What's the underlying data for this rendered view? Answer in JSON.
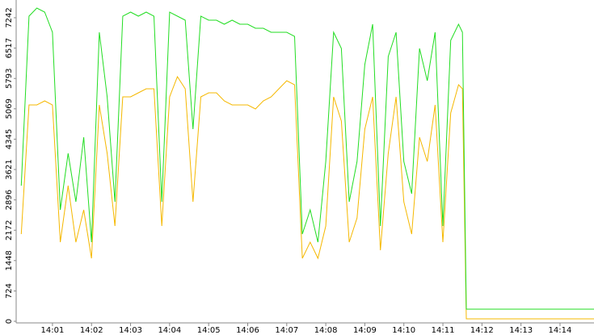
{
  "chart_data": {
    "type": "line",
    "x": [
      840.2,
      840.4,
      840.6,
      840.8,
      841.0,
      841.2,
      841.4,
      841.6,
      841.8,
      842.0,
      842.2,
      842.4,
      842.6,
      842.8,
      843.0,
      843.2,
      843.4,
      843.6,
      843.8,
      844.0,
      844.2,
      844.4,
      844.6,
      844.8,
      845.0,
      845.2,
      845.4,
      845.6,
      845.8,
      846.0,
      846.2,
      846.4,
      846.6,
      846.8,
      847.0,
      847.2,
      847.4,
      847.6,
      847.8,
      848.0,
      848.2,
      848.4,
      848.6,
      848.8,
      849.0,
      849.2,
      849.4,
      849.6,
      849.8,
      850.0,
      850.2,
      850.4,
      850.6,
      850.8,
      851.0,
      851.2,
      851.4,
      851.5,
      851.6,
      854.87
    ],
    "series": [
      {
        "color": "#22dd22",
        "values": [
          3236,
          7280,
          7473,
          7377,
          6895,
          2658,
          4006,
          2850,
          4391,
          1887,
          6895,
          5354,
          2850,
          7280,
          7377,
          7280,
          7377,
          7280,
          2850,
          7377,
          7280,
          7184,
          4584,
          7280,
          7184,
          7184,
          7088,
          7184,
          7088,
          7088,
          6991,
          6991,
          6895,
          6895,
          6895,
          6799,
          2080,
          2658,
          1887,
          3813,
          6895,
          6510,
          2850,
          3813,
          6125,
          7088,
          2273,
          6317,
          6895,
          3813,
          3043,
          6510,
          5739,
          6895,
          2273,
          6702,
          7088,
          6895,
          289,
          289
        ]
      },
      {
        "color": "#f5b800",
        "values": [
          2080,
          5162,
          5162,
          5258,
          5162,
          1887,
          3236,
          1887,
          2658,
          1502,
          5162,
          4006,
          2273,
          5354,
          5354,
          5451,
          5547,
          5547,
          2273,
          5354,
          5836,
          5547,
          2850,
          5354,
          5451,
          5451,
          5258,
          5162,
          5162,
          5162,
          5065,
          5258,
          5354,
          5547,
          5739,
          5643,
          1502,
          1887,
          1502,
          2273,
          5354,
          4776,
          1887,
          2465,
          4584,
          5354,
          1695,
          4006,
          5354,
          2850,
          2080,
          4391,
          3813,
          5162,
          1887,
          4969,
          5643,
          5547,
          58,
          58
        ]
      }
    ],
    "xlim": [
      840.07,
      854.87
    ],
    "xticks": [
      {
        "value": 841,
        "label": "14:01"
      },
      {
        "value": 842,
        "label": "14:02"
      },
      {
        "value": 843,
        "label": "14:03"
      },
      {
        "value": 844,
        "label": "14:04"
      },
      {
        "value": 845,
        "label": "14:05"
      },
      {
        "value": 846,
        "label": "14:06"
      },
      {
        "value": 847,
        "label": "14:07"
      },
      {
        "value": 848,
        "label": "14:08"
      },
      {
        "value": 849,
        "label": "14:09"
      },
      {
        "value": 850,
        "label": "14:10"
      },
      {
        "value": 851,
        "label": "14:11"
      },
      {
        "value": 852,
        "label": "14:12"
      },
      {
        "value": 853,
        "label": "14:13"
      },
      {
        "value": 854,
        "label": "14:14"
      }
    ],
    "ylim": [
      0,
      7665
    ],
    "yticks": [
      0,
      724,
      1448,
      2172,
      2896,
      3621,
      4345,
      5069,
      5793,
      6517,
      7242
    ]
  }
}
